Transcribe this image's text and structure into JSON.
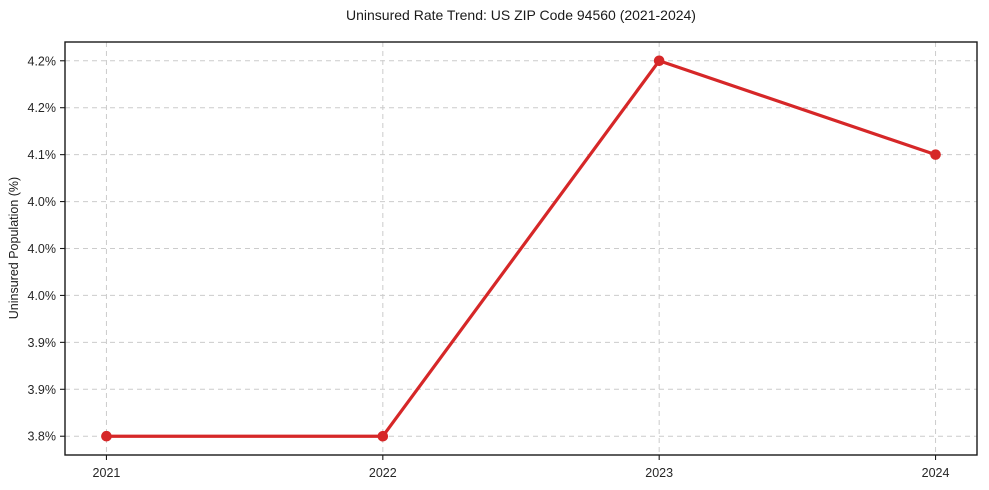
{
  "chart_data": {
    "type": "line",
    "title": "Uninsured Rate Trend: US ZIP Code 94560 (2021-2024)",
    "xlabel": "",
    "ylabel": "Uninsured Population (%)",
    "x": [
      2021,
      2022,
      2023,
      2024
    ],
    "values": [
      3.8,
      3.8,
      4.2,
      4.1
    ],
    "x_tick_labels": [
      "2021",
      "2022",
      "2023",
      "2024"
    ],
    "y_ticks": [
      {
        "value": 3.8,
        "label": "3.8%"
      },
      {
        "value": 3.85,
        "label": "3.9%"
      },
      {
        "value": 3.9,
        "label": "3.9%"
      },
      {
        "value": 3.95,
        "label": "4.0%"
      },
      {
        "value": 4.0,
        "label": "4.0%"
      },
      {
        "value": 4.05,
        "label": "4.0%"
      },
      {
        "value": 4.1,
        "label": "4.1%"
      },
      {
        "value": 4.15,
        "label": "4.2%"
      },
      {
        "value": 4.2,
        "label": "4.2%"
      }
    ],
    "xlim": [
      2020.85,
      2024.15
    ],
    "ylim": [
      3.78,
      4.22
    ],
    "grid": true,
    "grid_style": "dashed",
    "legend": false,
    "colors": {
      "line": "#d62728",
      "marker": "#d62728",
      "grid": "#cccccc",
      "axis": "#1a1a1a",
      "text": "#262626",
      "background": "#ffffff"
    }
  }
}
